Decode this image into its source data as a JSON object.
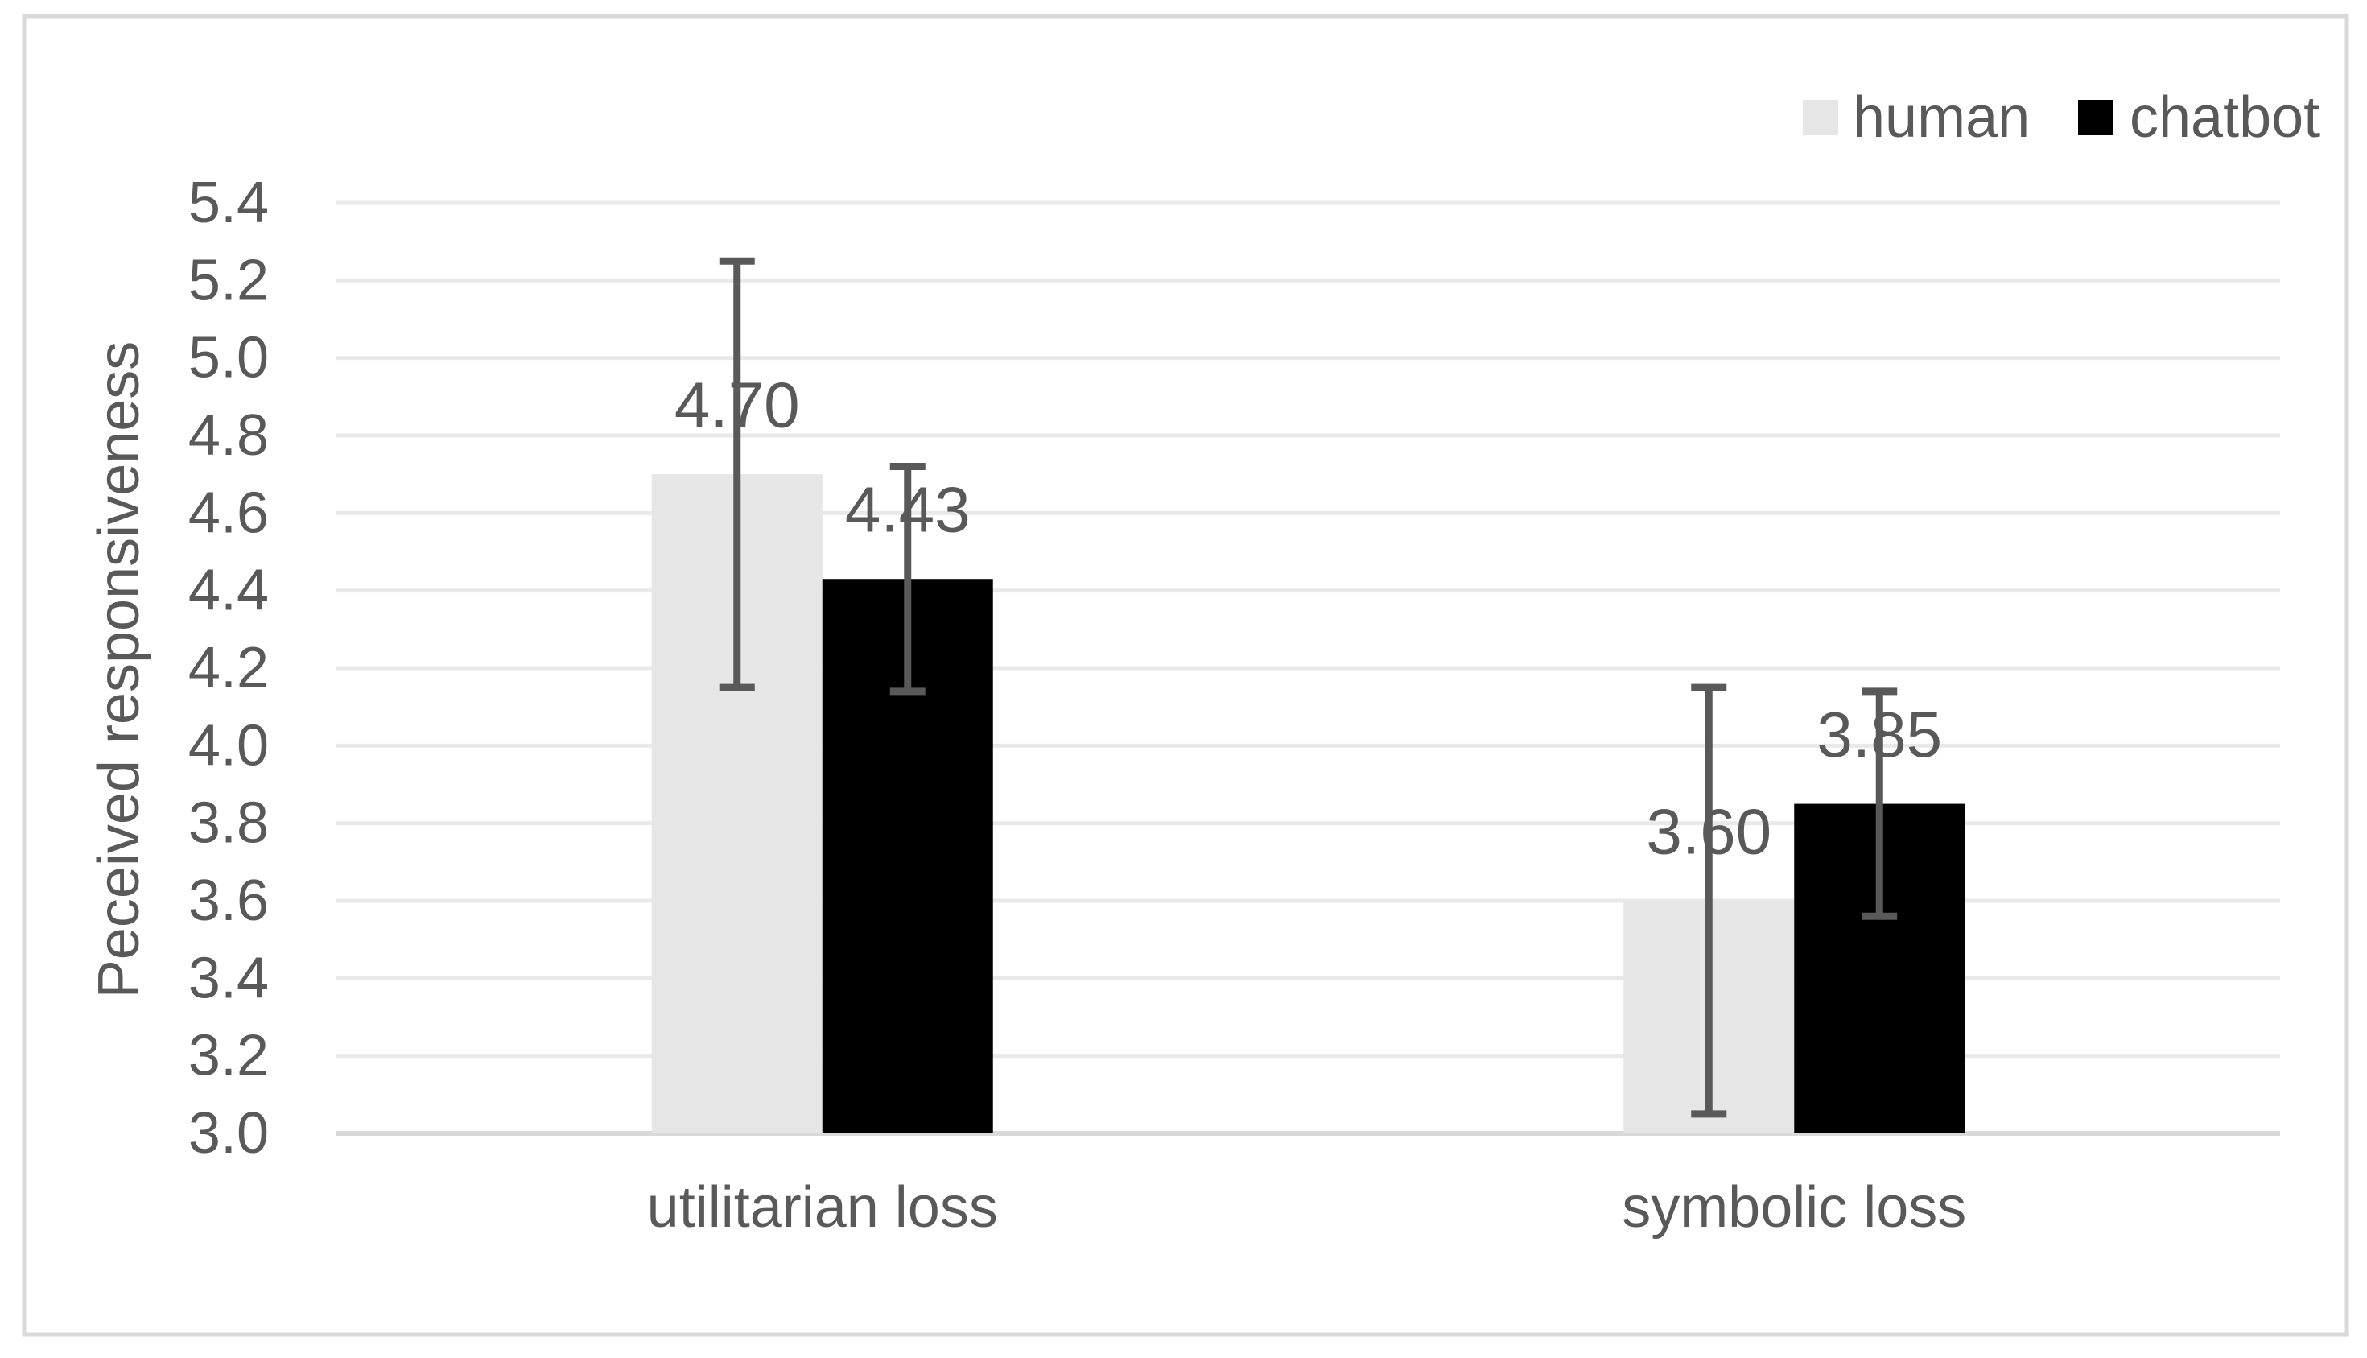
{
  "chart_data": {
    "type": "bar",
    "title": "",
    "categories": [
      "utilitarian loss",
      "symbolic loss"
    ],
    "series": [
      {
        "name": "human",
        "color": "#e6e6e6",
        "values": [
          4.7,
          3.6
        ],
        "data_labels": [
          "4.70",
          "3.60"
        ],
        "error_bar": 0.55
      },
      {
        "name": "chatbot",
        "color": "#000000",
        "values": [
          4.43,
          3.85
        ],
        "data_labels": [
          "4.43",
          "3.85"
        ],
        "error_bar": 0.29
      }
    ],
    "xlabel": "",
    "ylabel": "Peceived responsiveness",
    "ylim": [
      3.0,
      5.4
    ],
    "ytick_step": 0.2,
    "ytick_labels": [
      "3.0",
      "3.2",
      "3.4",
      "3.6",
      "3.8",
      "4.0",
      "4.2",
      "4.4",
      "4.6",
      "4.8",
      "5.0",
      "5.2",
      "5.4"
    ],
    "grid": true,
    "legend": {
      "position": "top-right",
      "items": [
        "human",
        "chatbot"
      ]
    },
    "colors": {
      "text": "#595959",
      "data_label_text": "#595959",
      "gridline": "#e9e9e9",
      "axis_line": "#d9d9d9",
      "frame_border": "#d9d9d9",
      "error_bar": "#595959",
      "background": "#ffffff"
    }
  }
}
